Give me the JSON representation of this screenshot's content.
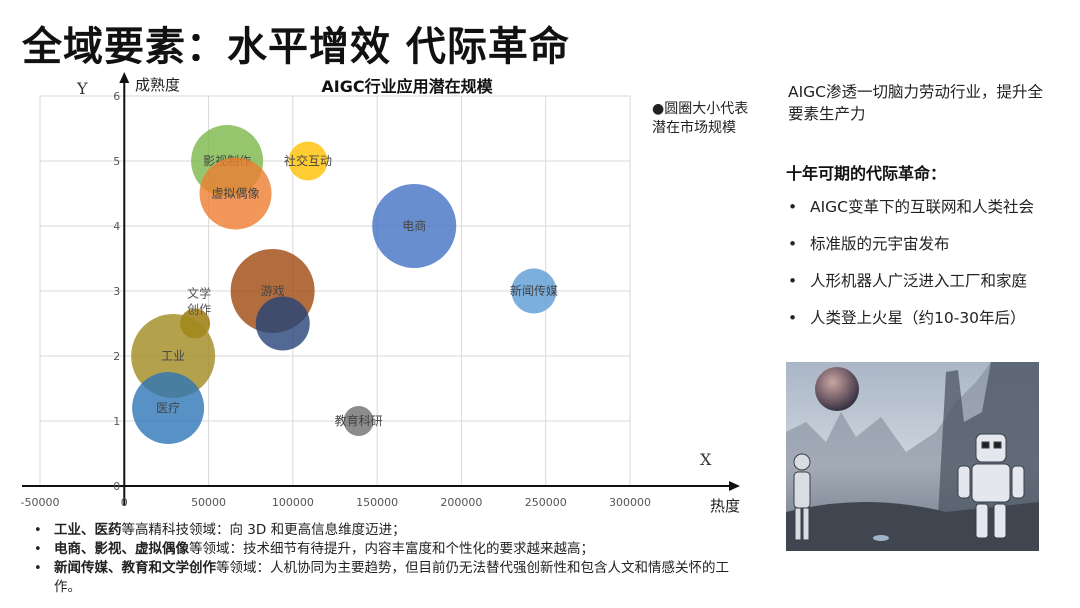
{
  "main_title": "全域要素：水平增效  代际革命",
  "chart_data": {
    "type": "scatter",
    "title": "AIGC行业应用潜在规模",
    "xlabel": "热度",
    "ylabel": "成熟度",
    "x_axis_letter": "X",
    "y_axis_letter": "Y",
    "xlim": [
      -50000,
      300000
    ],
    "ylim": [
      0,
      6
    ],
    "x_ticks": [
      "-50000",
      "0",
      "50000",
      "100000",
      "150000",
      "200000",
      "250000",
      "300000"
    ],
    "x_tick_values": [
      -50000,
      0,
      50000,
      100000,
      150000,
      200000,
      250000,
      300000
    ],
    "y_ticks": [
      "0",
      "1",
      "2",
      "3",
      "4",
      "5",
      "6"
    ],
    "y_tick_values": [
      0,
      1,
      2,
      3,
      4,
      5,
      6
    ],
    "grid": true,
    "points": [
      {
        "label": "影视制作",
        "x": 61000,
        "y": 5.0,
        "size": 24,
        "color": "#7ab648"
      },
      {
        "label": "虚拟偶像",
        "x": 66000,
        "y": 4.5,
        "size": 24,
        "color": "#ed7d31"
      },
      {
        "label": "社交互动",
        "x": 109000,
        "y": 5.0,
        "size": 13,
        "color": "#ffc000"
      },
      {
        "label": "电商",
        "x": 172000,
        "y": 4.0,
        "size": 28,
        "color": "#4472c4"
      },
      {
        "label": "新闻传媒",
        "x": 243000,
        "y": 3.0,
        "size": 15,
        "color": "#5b9bd5"
      },
      {
        "label": "游戏",
        "x": 88000,
        "y": 3.0,
        "size": 28,
        "color": "#9e480e"
      },
      {
        "label": "文学创作",
        "x": 42000,
        "y": 2.5,
        "size": 10,
        "color": "#997300"
      },
      {
        "label": "",
        "x": 94000,
        "y": 2.5,
        "size": 18,
        "color": "#264478"
      },
      {
        "label": "工业",
        "x": 29000,
        "y": 2.0,
        "size": 28,
        "color": "#a08a1e"
      },
      {
        "label": "医疗",
        "x": 26000,
        "y": 1.2,
        "size": 24,
        "color": "#2e75b6"
      },
      {
        "label": "教育科研",
        "x": 139000,
        "y": 1.0,
        "size": 10,
        "color": "#6f6f6f"
      }
    ]
  },
  "legend_note": "●圆圈大小代表潜在市场规模",
  "bottom_notes": [
    {
      "bold": "工业、医药",
      "rest": "等高精科技领域：向 3D 和更高信息维度迈进；"
    },
    {
      "bold": "电商、影视、虚拟偶像",
      "rest": "等领域：技术细节有待提升，内容丰富度和个性化的要求越来越高；"
    },
    {
      "bold": "新闻传媒、教育和文学创作",
      "rest": "等领域：人机协同为主要趋势，但目前仍无法替代强创新性和包含人文和情感关怀的工作。"
    }
  ],
  "side": {
    "intro": "AIGC渗透一切脑力劳动行业，提升全要素生产力",
    "heading": "十年可期的代际革命：",
    "items": [
      "AIGC变革下的互联网和人类社会",
      "标准版的元宇宙发布",
      "人形机器人广泛进入工厂和家庭",
      "人类登上火星（约10-30年后）"
    ]
  }
}
